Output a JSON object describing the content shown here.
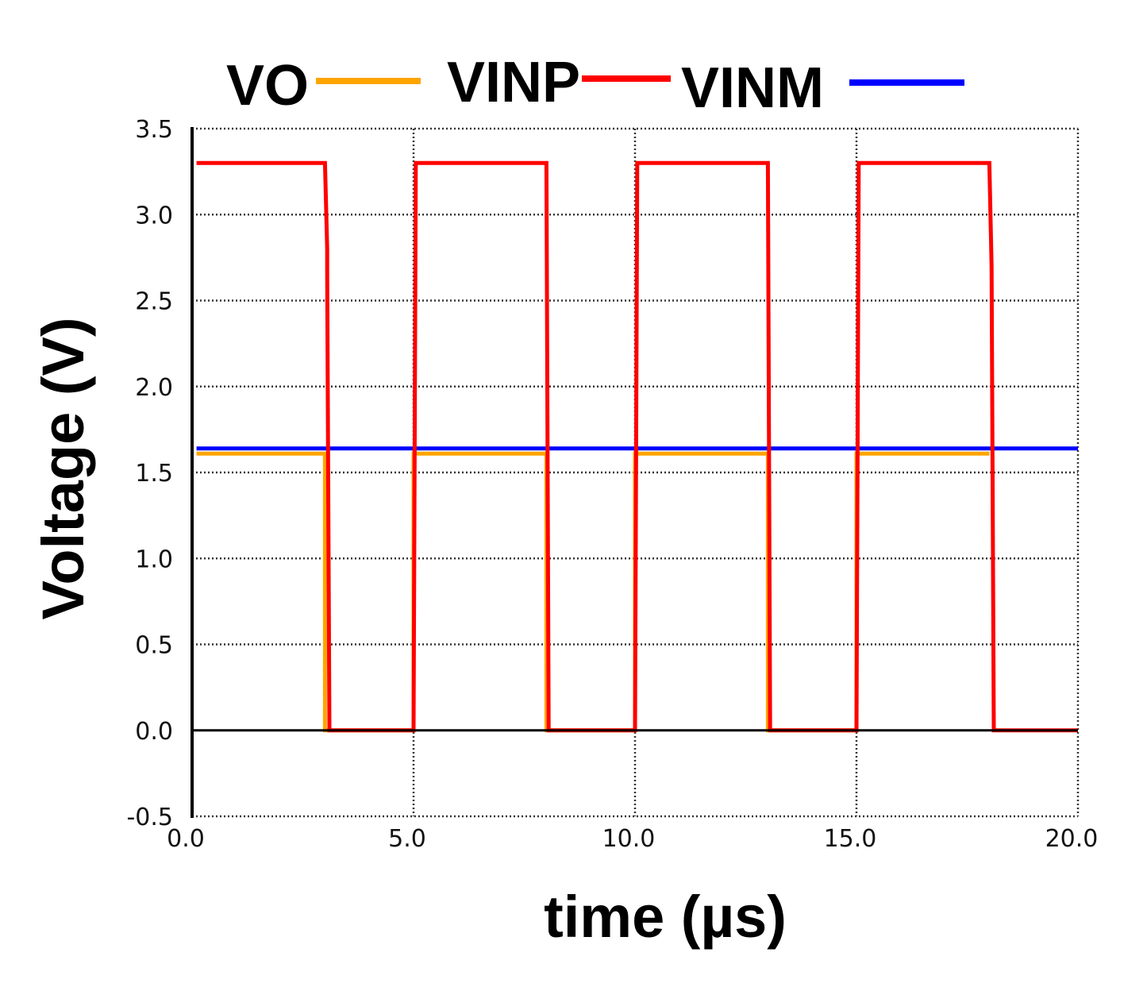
{
  "chart_data": {
    "type": "line",
    "xlabel": "time (µs)",
    "ylabel": "Voltage  (V)",
    "xlim": [
      0.0,
      20.0
    ],
    "ylim": [
      -0.5,
      3.5
    ],
    "x_ticks": [
      "0.0",
      "5.0",
      "10.0",
      "15.0",
      "20.0"
    ],
    "y_ticks": [
      "-0.5",
      "0.0",
      "0.5",
      "1.0",
      "1.5",
      "2.0",
      "2.5",
      "3.0",
      "3.5"
    ],
    "x_tick_values": [
      0,
      5,
      10,
      15,
      20
    ],
    "y_tick_values": [
      -0.5,
      0,
      0.5,
      1.0,
      1.5,
      2.0,
      2.5,
      3.0,
      3.5
    ],
    "grid": true,
    "legend_position": "top",
    "series": [
      {
        "name": "VO",
        "color": "#FFA500",
        "x": [
          0.1,
          3.0,
          3.0,
          5.0,
          5.0,
          8.0,
          8.0,
          10.0,
          10.0,
          13.0,
          13.0,
          15.0,
          15.0,
          18.0
        ],
        "y": [
          1.61,
          1.61,
          0.0,
          0.0,
          1.61,
          1.61,
          0.0,
          0.0,
          1.61,
          1.61,
          0.0,
          0.0,
          1.61,
          1.61
        ]
      },
      {
        "name": "VINP",
        "color": "#FF0000",
        "x": [
          0.1,
          3.0,
          3.05,
          3.05,
          3.1,
          5.0,
          5.05,
          8.0,
          8.05,
          10.0,
          10.05,
          13.0,
          13.05,
          15.0,
          15.05,
          18.0,
          18.05,
          18.05,
          18.1,
          20.0
        ],
        "y": [
          3.3,
          3.3,
          2.8,
          2.65,
          0.0,
          0.0,
          3.3,
          3.3,
          0.0,
          0.0,
          3.3,
          3.3,
          0.0,
          0.0,
          3.3,
          3.3,
          2.7,
          2.7,
          0.0,
          0.0
        ]
      },
      {
        "name": "VINM",
        "color": "#0000FF",
        "x": [
          0.1,
          20.0
        ],
        "y": [
          1.64,
          1.64
        ]
      }
    ]
  }
}
